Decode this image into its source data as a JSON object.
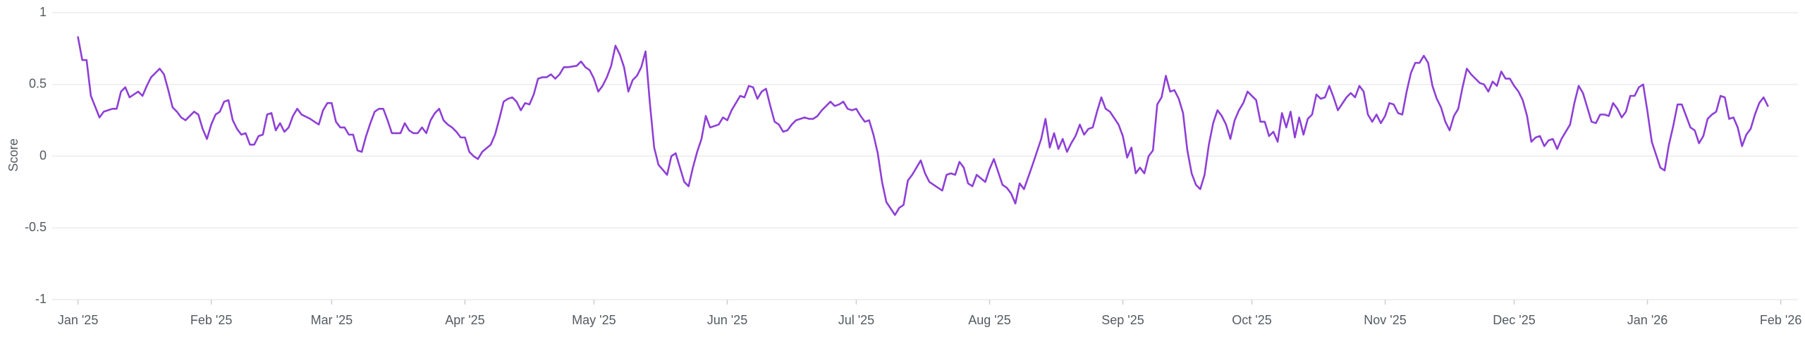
{
  "chart_data": {
    "type": "line",
    "y_label": "Score",
    "xlim": [
      -6,
      400
    ],
    "xticks": [
      {
        "value": 0,
        "label": "Jan '25"
      },
      {
        "value": 31,
        "label": "Feb '25"
      },
      {
        "value": 59,
        "label": "Mar '25"
      },
      {
        "value": 90,
        "label": "Apr '25"
      },
      {
        "value": 120,
        "label": "May '25"
      },
      {
        "value": 151,
        "label": "Jun '25"
      },
      {
        "value": 181,
        "label": "Jul '25"
      },
      {
        "value": 212,
        "label": "Aug '25"
      },
      {
        "value": 243,
        "label": "Sep '25"
      },
      {
        "value": 273,
        "label": "Oct '25"
      },
      {
        "value": 304,
        "label": "Nov '25"
      },
      {
        "value": 334,
        "label": "Dec '25"
      },
      {
        "value": 365,
        "label": "Jan '26"
      },
      {
        "value": 396,
        "label": "Feb '26"
      }
    ],
    "ylim": [
      -1,
      1
    ],
    "yticks": [
      1,
      0.5,
      0,
      -0.5,
      -1
    ],
    "grid": true,
    "series": [
      {
        "color": "#8e3fd6",
        "x": [
          0,
          1,
          2,
          3,
          5,
          6,
          7,
          8,
          9,
          10,
          11,
          12,
          14,
          15,
          16,
          17,
          19,
          20,
          21,
          22,
          23,
          24,
          25,
          27,
          28,
          29,
          30,
          31,
          32,
          33,
          34,
          35,
          36,
          37,
          38,
          39,
          40,
          41,
          42,
          43,
          44,
          45,
          46,
          47,
          48,
          49,
          50,
          51,
          52,
          54,
          55,
          56,
          57,
          58,
          59,
          60,
          61,
          62,
          63,
          64,
          65,
          66,
          67,
          68,
          69,
          70,
          71,
          72,
          73,
          75,
          76,
          77,
          78,
          79,
          80,
          81,
          82,
          83,
          84,
          85,
          86,
          87,
          88,
          89,
          90,
          91,
          92,
          93,
          94,
          96,
          97,
          98,
          99,
          100,
          101,
          102,
          103,
          104,
          105,
          106,
          107,
          108,
          109,
          110,
          111,
          112,
          113,
          114,
          116,
          117,
          118,
          119,
          120,
          121,
          122,
          123,
          124,
          125,
          126,
          127,
          128,
          129,
          130,
          131,
          132,
          133,
          134,
          135,
          137,
          138,
          139,
          140,
          141,
          142,
          143,
          144,
          145,
          146,
          147,
          149,
          150,
          151,
          152,
          153,
          154,
          155,
          156,
          157,
          158,
          159,
          160,
          161,
          162,
          163,
          164,
          165,
          166,
          167,
          169,
          170,
          171,
          172,
          173,
          174,
          175,
          176,
          177,
          178,
          179,
          180,
          181,
          182,
          183,
          184,
          185,
          186,
          187,
          188,
          190,
          191,
          192,
          193,
          194,
          195,
          196,
          197,
          198,
          199,
          200,
          201,
          202,
          203,
          204,
          205,
          206,
          207,
          208,
          209,
          211,
          212,
          213,
          214,
          215,
          216,
          217,
          218,
          219,
          220,
          222,
          223,
          224,
          225,
          226,
          227,
          228,
          229,
          230,
          231,
          232,
          233,
          234,
          235,
          236,
          237,
          238,
          239,
          240,
          242,
          243,
          244,
          245,
          246,
          247,
          248,
          249,
          250,
          251,
          252,
          253,
          254,
          255,
          256,
          257,
          258,
          259,
          260,
          261,
          262,
          263,
          264,
          265,
          266,
          267,
          268,
          269,
          270,
          271,
          272,
          274,
          275,
          276,
          277,
          278,
          279,
          280,
          281,
          282,
          283,
          284,
          285,
          286,
          287,
          288,
          289,
          290,
          291,
          292,
          293,
          295,
          296,
          297,
          298,
          299,
          300,
          301,
          302,
          303,
          304,
          305,
          306,
          307,
          308,
          309,
          310,
          311,
          312,
          313,
          314,
          315,
          316,
          317,
          318,
          319,
          320,
          321,
          322,
          323,
          324,
          326,
          327,
          328,
          329,
          330,
          331,
          332,
          333,
          334,
          335,
          336,
          337,
          338,
          339,
          340,
          341,
          342,
          343,
          344,
          345,
          347,
          348,
          349,
          350,
          351,
          352,
          353,
          354,
          355,
          356,
          357,
          358,
          359,
          360,
          361,
          362,
          363,
          364,
          365,
          366,
          368,
          369,
          370,
          371,
          372,
          373,
          374,
          375,
          376,
          377,
          378,
          379,
          380,
          381,
          382,
          383,
          384,
          385,
          386,
          387,
          388,
          389,
          390,
          391,
          392,
          393
        ],
        "values": [
          0.83,
          0.67,
          0.67,
          0.42,
          0.27,
          0.31,
          0.32,
          0.33,
          0.33,
          0.45,
          0.48,
          0.41,
          0.45,
          0.42,
          0.49,
          0.55,
          0.61,
          0.57,
          0.46,
          0.34,
          0.31,
          0.27,
          0.25,
          0.31,
          0.29,
          0.19,
          0.12,
          0.22,
          0.29,
          0.31,
          0.38,
          0.39,
          0.25,
          0.19,
          0.15,
          0.16,
          0.08,
          0.08,
          0.14,
          0.15,
          0.29,
          0.3,
          0.18,
          0.23,
          0.17,
          0.2,
          0.28,
          0.33,
          0.29,
          0.26,
          0.24,
          0.22,
          0.32,
          0.37,
          0.37,
          0.24,
          0.2,
          0.2,
          0.15,
          0.15,
          0.04,
          0.03,
          0.14,
          0.23,
          0.31,
          0.33,
          0.33,
          0.25,
          0.16,
          0.16,
          0.23,
          0.18,
          0.16,
          0.16,
          0.2,
          0.16,
          0.25,
          0.3,
          0.33,
          0.25,
          0.22,
          0.2,
          0.17,
          0.13,
          0.13,
          0.03,
          0,
          -0.02,
          0.03,
          0.08,
          0.15,
          0.26,
          0.38,
          0.4,
          0.41,
          0.38,
          0.32,
          0.37,
          0.36,
          0.43,
          0.54,
          0.55,
          0.55,
          0.57,
          0.54,
          0.57,
          0.62,
          0.62,
          0.63,
          0.66,
          0.62,
          0.6,
          0.54,
          0.45,
          0.49,
          0.55,
          0.63,
          0.77,
          0.71,
          0.62,
          0.45,
          0.53,
          0.56,
          0.62,
          0.73,
          0.37,
          0.06,
          -0.06,
          -0.13,
          0,
          0.02,
          -0.08,
          -0.18,
          -0.21,
          -0.08,
          0.03,
          0.12,
          0.28,
          0.2,
          0.22,
          0.27,
          0.25,
          0.32,
          0.37,
          0.42,
          0.41,
          0.49,
          0.48,
          0.4,
          0.45,
          0.47,
          0.35,
          0.24,
          0.22,
          0.17,
          0.18,
          0.22,
          0.25,
          0.27,
          0.26,
          0.26,
          0.28,
          0.32,
          0.35,
          0.38,
          0.35,
          0.36,
          0.38,
          0.33,
          0.32,
          0.33,
          0.28,
          0.24,
          0.25,
          0.15,
          0.02,
          -0.18,
          -0.32,
          -0.41,
          -0.36,
          -0.34,
          -0.17,
          -0.13,
          -0.08,
          -0.03,
          -0.12,
          -0.18,
          -0.2,
          -0.22,
          -0.24,
          -0.13,
          -0.12,
          -0.13,
          -0.04,
          -0.08,
          -0.19,
          -0.21,
          -0.13,
          -0.18,
          -0.09,
          -0.02,
          -0.11,
          -0.2,
          -0.22,
          -0.26,
          -0.33,
          -0.19,
          -0.23,
          -0.06,
          0.03,
          0.12,
          0.26,
          0.06,
          0.16,
          0.05,
          0.12,
          0.03,
          0.09,
          0.14,
          0.22,
          0.15,
          0.19,
          0.2,
          0.31,
          0.41,
          0.33,
          0.31,
          0.22,
          0.14,
          -0.01,
          0.06,
          -0.12,
          -0.08,
          -0.12,
          0,
          0.04,
          0.36,
          0.41,
          0.56,
          0.45,
          0.46,
          0.4,
          0.3,
          0.04,
          -0.12,
          -0.2,
          -0.23,
          -0.13,
          0.08,
          0.23,
          0.32,
          0.28,
          0.22,
          0.12,
          0.25,
          0.32,
          0.37,
          0.45,
          0.39,
          0.24,
          0.24,
          0.14,
          0.17,
          0.1,
          0.3,
          0.2,
          0.31,
          0.13,
          0.27,
          0.15,
          0.26,
          0.29,
          0.43,
          0.4,
          0.41,
          0.49,
          0.41,
          0.32,
          0.41,
          0.44,
          0.41,
          0.49,
          0.45,
          0.29,
          0.24,
          0.29,
          0.23,
          0.28,
          0.37,
          0.36,
          0.3,
          0.29,
          0.45,
          0.58,
          0.65,
          0.65,
          0.7,
          0.65,
          0.49,
          0.4,
          0.34,
          0.24,
          0.18,
          0.28,
          0.33,
          0.48,
          0.61,
          0.57,
          0.51,
          0.5,
          0.45,
          0.52,
          0.49,
          0.59,
          0.54,
          0.54,
          0.49,
          0.45,
          0.39,
          0.28,
          0.1,
          0.13,
          0.14,
          0.07,
          0.11,
          0.12,
          0.05,
          0.12,
          0.22,
          0.37,
          0.49,
          0.44,
          0.34,
          0.24,
          0.23,
          0.29,
          0.29,
          0.28,
          0.37,
          0.33,
          0.27,
          0.31,
          0.42,
          0.42,
          0.48,
          0.5,
          0.31,
          0.1,
          -0.08,
          -0.1,
          0.08,
          0.21,
          0.36,
          0.36,
          0.28,
          0.2,
          0.18,
          0.09,
          0.14,
          0.26,
          0.29,
          0.31,
          0.42,
          0.41,
          0.26,
          0.27,
          0.2,
          0.07,
          0.15,
          0.19,
          0.29,
          0.37,
          0.41,
          0.35
        ]
      }
    ]
  }
}
